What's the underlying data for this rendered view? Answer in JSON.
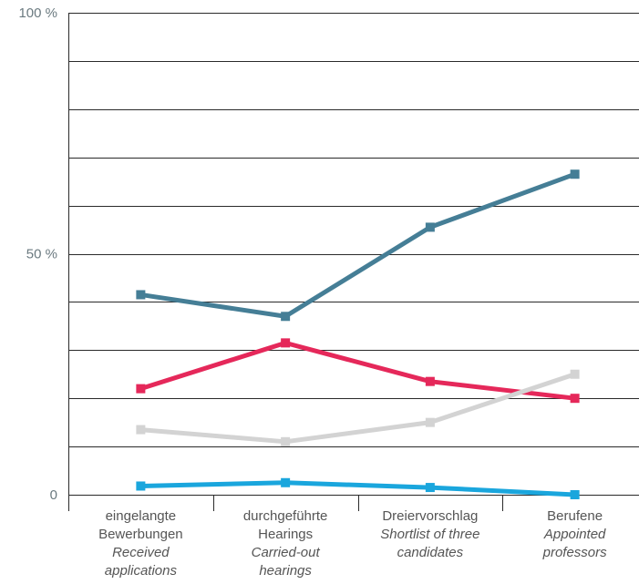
{
  "chart_data": {
    "type": "line",
    "ylim": [
      0,
      100
    ],
    "y_ticks": [
      {
        "value": 0,
        "label": "0"
      },
      {
        "value": 50,
        "label": "50 %"
      },
      {
        "value": 100,
        "label": "100 %"
      }
    ],
    "grid": true,
    "categories": [
      {
        "lines": [
          "eingelangte",
          "Bewerbungen"
        ],
        "italic_lines": [
          "Received",
          "applications"
        ]
      },
      {
        "lines": [
          "durchgeführte",
          "Hearings"
        ],
        "italic_lines": [
          "Carried-out",
          "hearings"
        ]
      },
      {
        "lines": [
          "Dreiervorschlag"
        ],
        "italic_lines": [
          "Shortlist of three",
          "candidates"
        ]
      },
      {
        "lines": [
          "Berufene"
        ],
        "italic_lines": [
          "Appointed",
          "professors"
        ]
      }
    ],
    "series": [
      {
        "color": "#457e96",
        "values": [
          41.5,
          37,
          55.5,
          66.5
        ]
      },
      {
        "color": "#e5285a",
        "values": [
          22,
          31.5,
          23.5,
          20
        ]
      },
      {
        "color": "#d3d3d3",
        "values": [
          13.5,
          11,
          15,
          25
        ]
      },
      {
        "color": "#1aa6dd",
        "values": [
          1.8,
          2.5,
          1.5,
          0
        ]
      }
    ]
  }
}
